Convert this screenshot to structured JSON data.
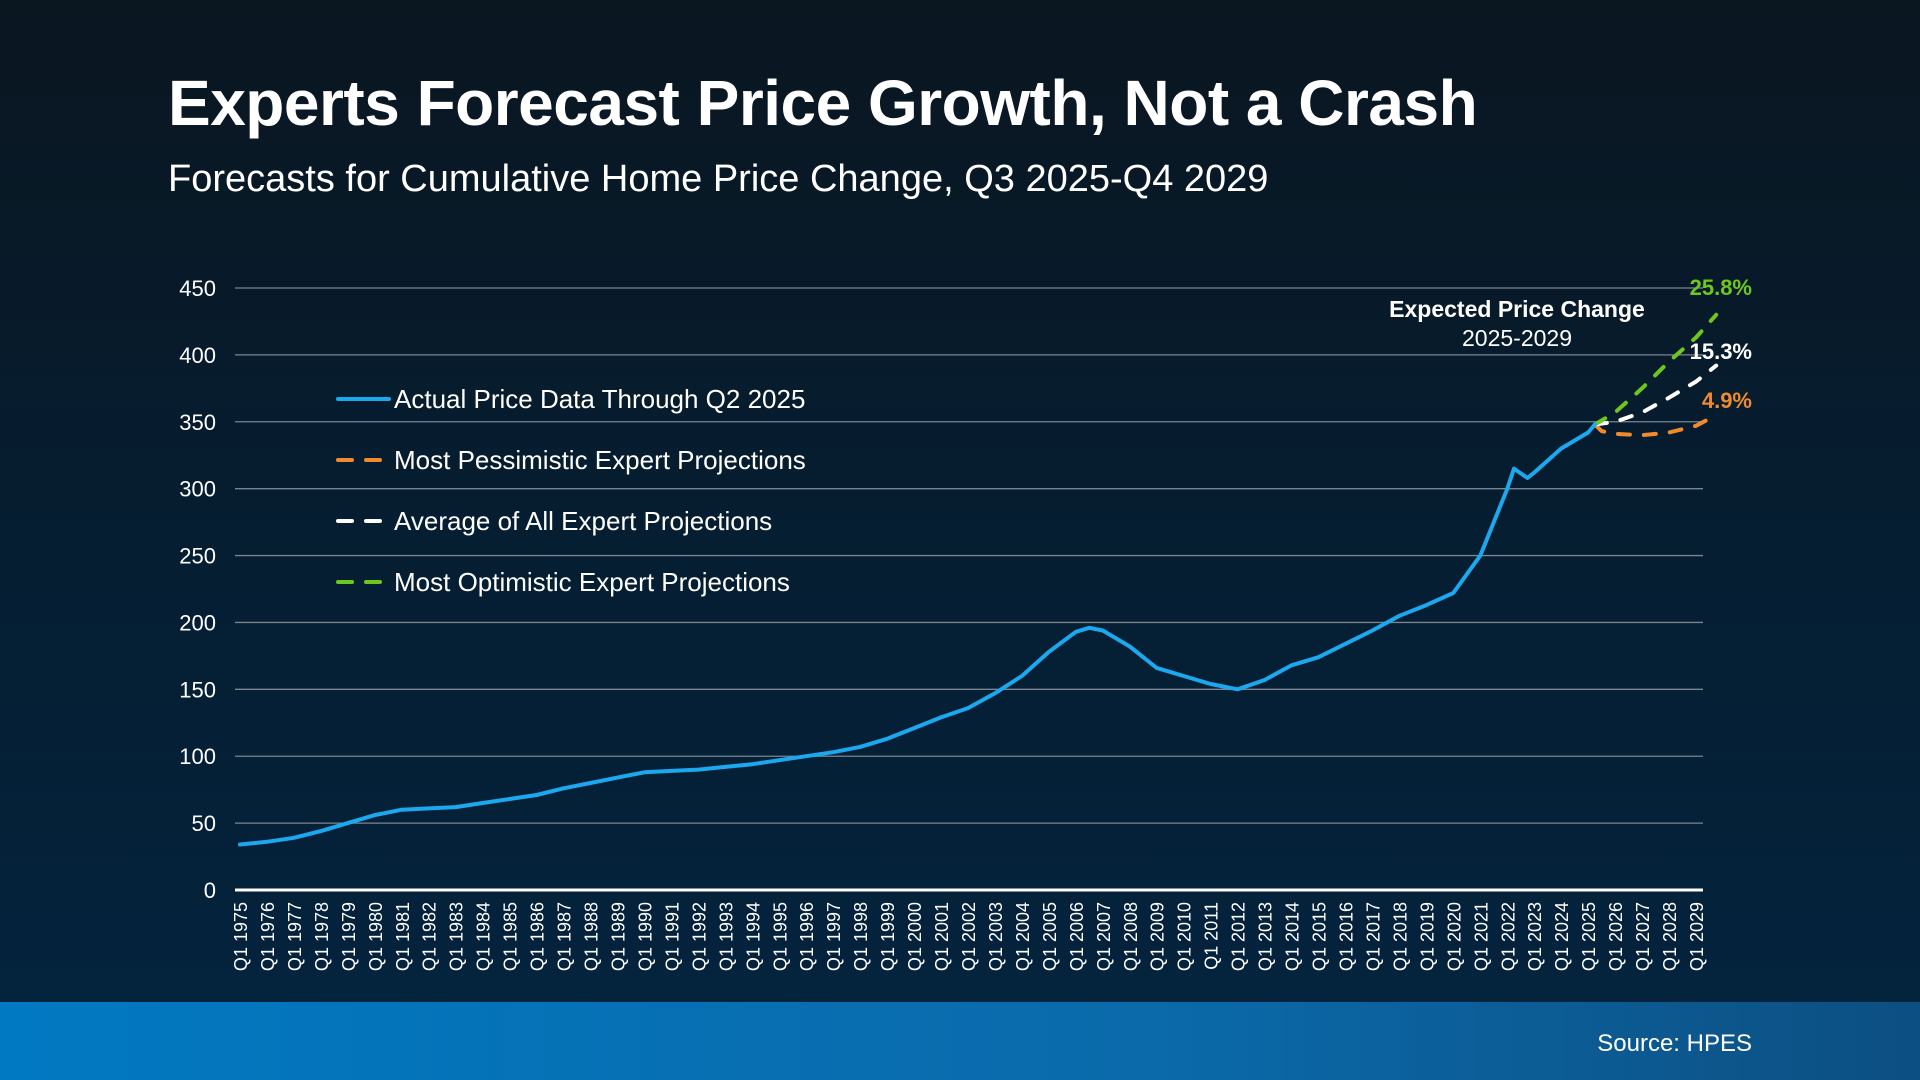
{
  "title": "Experts Forecast Price Growth, Not a Crash",
  "subtitle": "Forecasts for Cumulative Home Price Change, Q3 2025-Q4 2029",
  "source": "Source: HPES",
  "chart_data": {
    "type": "line",
    "title": "Experts Forecast Price Growth, Not a Crash",
    "subtitle": "Forecasts for Cumulative Home Price Change, Q3 2025-Q4 2029",
    "ylim": [
      0,
      450
    ],
    "y_ticks": [
      0,
      50,
      100,
      150,
      200,
      250,
      300,
      350,
      400,
      450
    ],
    "grid": true,
    "legend_placement": "upper-left",
    "x_tick_labels": [
      "Q1 1975",
      "Q1 1976",
      "Q1 1977",
      "Q1 1978",
      "Q1 1979",
      "Q1 1980",
      "Q1 1981",
      "Q1 1982",
      "Q1 1983",
      "Q1 1984",
      "Q1 1985",
      "Q1 1986",
      "Q1 1987",
      "Q1 1988",
      "Q1 1989",
      "Q1 1990",
      "Q1 1991",
      "Q1 1992",
      "Q1 1993",
      "Q1 1994",
      "Q1 1995",
      "Q1 1996",
      "Q1 1997",
      "Q1 1998",
      "Q1 1999",
      "Q1 2000",
      "Q1 2001",
      "Q1 2002",
      "Q1 2003",
      "Q1 2004",
      "Q1 2005",
      "Q1 2006",
      "Q1 2007",
      "Q1 2008",
      "Q1 2009",
      "Q1 2010",
      "Q1 2011",
      "Q1 2012",
      "Q1 2013",
      "Q1 2014",
      "Q1 2015",
      "Q1 2016",
      "Q1 2017",
      "Q1 2018",
      "Q1 2019",
      "Q1 2020",
      "Q1 2021",
      "Q1 2022",
      "Q1 2023",
      "Q1 2024",
      "Q1 2025",
      "Q1 2026",
      "Q1 2027",
      "Q1 2028",
      "Q1 2029"
    ],
    "series": [
      {
        "name": "Actual Price Data Through Q2 2025",
        "color": "#1ba8ef",
        "dashed": false,
        "points": [
          [
            "Q1 1975",
            34
          ],
          [
            "Q1 1976",
            36
          ],
          [
            "Q1 1977",
            39
          ],
          [
            "Q1 1978",
            44
          ],
          [
            "Q1 1979",
            50
          ],
          [
            "Q1 1980",
            56
          ],
          [
            "Q1 1981",
            60
          ],
          [
            "Q1 1982",
            61
          ],
          [
            "Q1 1983",
            62
          ],
          [
            "Q1 1984",
            65
          ],
          [
            "Q1 1985",
            68
          ],
          [
            "Q1 1986",
            71
          ],
          [
            "Q1 1987",
            76
          ],
          [
            "Q1 1988",
            80
          ],
          [
            "Q1 1989",
            84
          ],
          [
            "Q1 1990",
            88
          ],
          [
            "Q1 1991",
            89
          ],
          [
            "Q1 1992",
            90
          ],
          [
            "Q1 1993",
            92
          ],
          [
            "Q1 1994",
            94
          ],
          [
            "Q1 1995",
            97
          ],
          [
            "Q1 1996",
            100
          ],
          [
            "Q1 1997",
            103
          ],
          [
            "Q1 1998",
            107
          ],
          [
            "Q1 1999",
            113
          ],
          [
            "Q1 2000",
            121
          ],
          [
            "Q1 2001",
            129
          ],
          [
            "Q1 2002",
            136
          ],
          [
            "Q1 2003",
            147
          ],
          [
            "Q1 2004",
            160
          ],
          [
            "Q1 2005",
            178
          ],
          [
            "Q1 2006",
            193
          ],
          [
            "Q3 2006",
            196
          ],
          [
            "Q1 2007",
            194
          ],
          [
            "Q1 2008",
            182
          ],
          [
            "Q1 2009",
            166
          ],
          [
            "Q1 2010",
            160
          ],
          [
            "Q1 2011",
            154
          ],
          [
            "Q1 2012",
            150
          ],
          [
            "Q1 2013",
            157
          ],
          [
            "Q1 2014",
            168
          ],
          [
            "Q1 2015",
            174
          ],
          [
            "Q1 2016",
            184
          ],
          [
            "Q1 2017",
            194
          ],
          [
            "Q1 2018",
            205
          ],
          [
            "Q1 2019",
            213
          ],
          [
            "Q1 2020",
            222
          ],
          [
            "Q1 2021",
            250
          ],
          [
            "Q1 2022",
            300
          ],
          [
            "Q2 2022",
            315
          ],
          [
            "Q4 2022",
            308
          ],
          [
            "Q1 2023",
            312
          ],
          [
            "Q1 2024",
            330
          ],
          [
            "Q1 2025",
            342
          ],
          [
            "Q2 2025",
            348
          ]
        ]
      },
      {
        "name": "Most Pessimistic Expert Projections",
        "color": "#f08a2c",
        "dashed": true,
        "end_label": "4.9%",
        "points": [
          [
            "Q2 2025",
            348
          ],
          [
            "Q3 2025",
            343
          ],
          [
            "Q1 2026",
            341
          ],
          [
            "Q1 2027",
            340
          ],
          [
            "Q1 2028",
            342
          ],
          [
            "Q1 2029",
            347
          ],
          [
            "Q4 2029",
            355
          ]
        ]
      },
      {
        "name": "Average of All Expert Projections",
        "color": "#ffffff",
        "dashed": true,
        "end_label": "15.3%",
        "points": [
          [
            "Q2 2025",
            348
          ],
          [
            "Q1 2026",
            350
          ],
          [
            "Q1 2027",
            357
          ],
          [
            "Q1 2028",
            368
          ],
          [
            "Q1 2029",
            380
          ],
          [
            "Q4 2029",
            392
          ]
        ]
      },
      {
        "name": "Most Optimistic Expert Projections",
        "color": "#6cc81e",
        "dashed": true,
        "end_label": "25.8%",
        "points": [
          [
            "Q2 2025",
            348
          ],
          [
            "Q1 2026",
            357
          ],
          [
            "Q1 2027",
            375
          ],
          [
            "Q1 2028",
            395
          ],
          [
            "Q1 2029",
            413
          ],
          [
            "Q4 2029",
            430
          ]
        ]
      }
    ],
    "annotation": {
      "title": "Expected Price Change",
      "subtitle": "2025-2029"
    }
  }
}
